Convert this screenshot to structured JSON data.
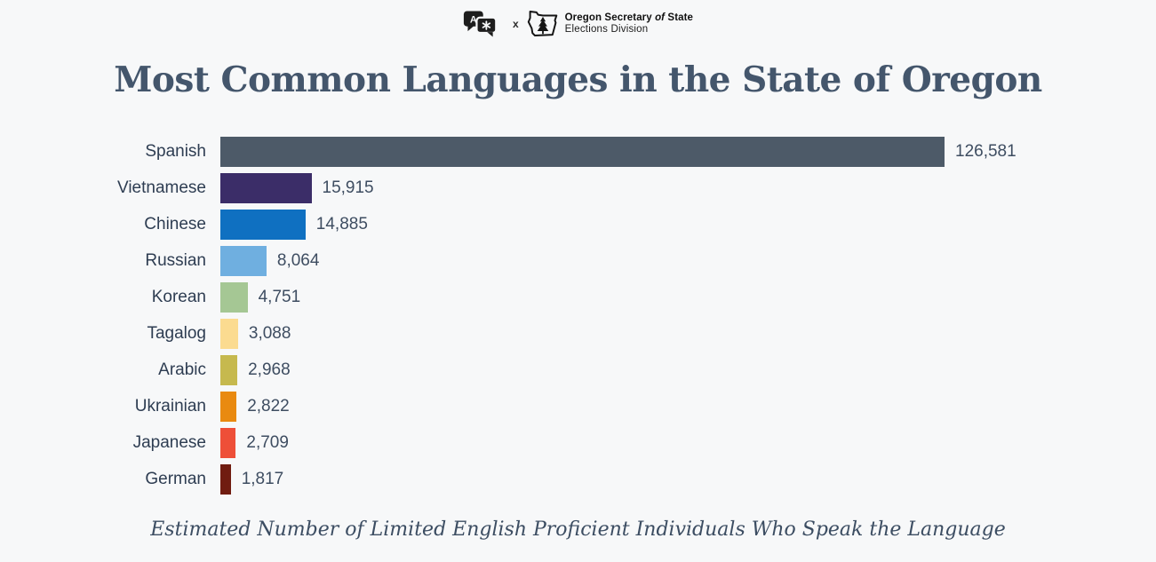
{
  "header": {
    "translate_icon_letter": "A",
    "brand_separator": "x",
    "brand_name_prefix": "Oregon Secretary ",
    "brand_name_of": "of",
    "brand_name_suffix": " State",
    "brand_division": "Elections Division"
  },
  "title": "Most Common Languages in the State of Oregon",
  "subtitle": "Estimated Number of Limited English Proficient Individuals Who Speak the Language",
  "chart_data": {
    "type": "bar",
    "orientation": "horizontal",
    "title": "Most Common Languages in the State of Oregon",
    "xlabel": "Estimated Number of Limited English Proficient Individuals Who Speak the Language",
    "categories": [
      "Spanish",
      "Vietnamese",
      "Chinese",
      "Russian",
      "Korean",
      "Tagalog",
      "Arabic",
      "Ukrainian",
      "Japanese",
      "German"
    ],
    "values": [
      126581,
      15915,
      14885,
      8064,
      4751,
      3088,
      2968,
      2822,
      2709,
      1817
    ],
    "value_labels": [
      "126,581",
      "15,915",
      "14,885",
      "8,064",
      "4,751",
      "3,088",
      "2,968",
      "2,822",
      "2,709",
      "1,817"
    ],
    "colors": [
      "#4d5a68",
      "#3b2d68",
      "#0f70c1",
      "#6fafe0",
      "#a5c794",
      "#fbdb90",
      "#c6b94e",
      "#e98a10",
      "#ee4f38",
      "#701c10"
    ],
    "xlim": [
      0,
      126581
    ],
    "grid": false,
    "legend": false
  },
  "colors": {
    "background": "#f7f8f9",
    "title_text": "#44566c",
    "category_text": "#2e3d52",
    "value_text": "#3e4d61",
    "logo_dark": "#1d1d1d"
  }
}
